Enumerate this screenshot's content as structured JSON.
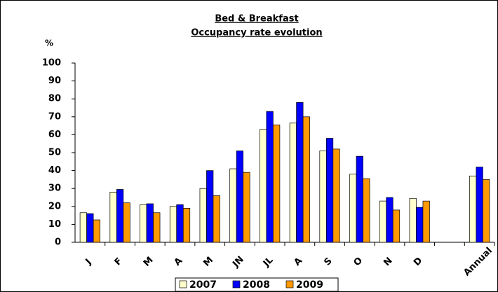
{
  "chart_data": {
    "type": "bar",
    "title": "Bed & Breakfast",
    "subtitle": "Occupancy rate evolution",
    "ylabel": "%",
    "categories": [
      "J",
      "F",
      "M",
      "A",
      "M",
      "JN",
      "JL",
      "A",
      "S",
      "O",
      "N",
      "D",
      null,
      "Annual"
    ],
    "series": [
      {
        "name": "2007",
        "color": "#ffffcc",
        "values": [
          16.5,
          28,
          21,
          20,
          30,
          41,
          63,
          66.5,
          51,
          38,
          23,
          24.5,
          null,
          37
        ]
      },
      {
        "name": "2008",
        "color": "#0000ff",
        "values": [
          16,
          29.5,
          21.5,
          21,
          40,
          51,
          73,
          78,
          58,
          48,
          25,
          19.5,
          null,
          42
        ]
      },
      {
        "name": "2009",
        "color": "#ff9900",
        "values": [
          12.5,
          22,
          16.5,
          19,
          26,
          39,
          65.5,
          70,
          52,
          35.5,
          18,
          23,
          null,
          35
        ]
      }
    ],
    "ylim": [
      0,
      100
    ],
    "yticks": [
      0,
      10,
      20,
      30,
      40,
      50,
      60,
      70,
      80,
      90,
      100
    ],
    "grid": false,
    "legend": "bottom"
  }
}
